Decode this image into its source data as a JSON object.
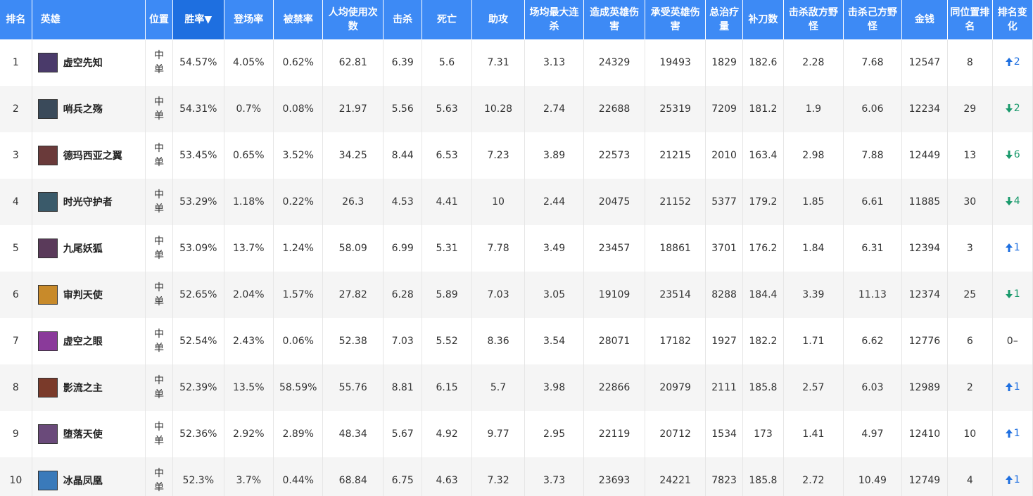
{
  "headers": {
    "rank": "排名",
    "hero": "英雄",
    "position": "位置",
    "win_rate": "胜率▼",
    "pick_rate": "登场率",
    "ban_rate": "被禁率",
    "avg_games": "人均使用次数",
    "kills": "击杀",
    "deaths": "死亡",
    "assists": "助攻",
    "max_streak": "场均最大连杀",
    "damage_dealt": "造成英雄伤害",
    "damage_taken": "承受英雄伤害",
    "healing": "总治疗量",
    "cs": "补刀数",
    "enemy_jungle": "击杀敌方野怪",
    "own_jungle": "击杀己方野怪",
    "gold": "金钱",
    "position_rank": "同位置排名",
    "rank_change": "排名变化"
  },
  "accent_colors": {
    "header": "#3d8af5",
    "header_sorted": "#1e6fe0",
    "up": "#1e6fe0",
    "down": "#1a9a6c"
  },
  "rows": [
    {
      "rank": "1",
      "hero": "虚空先知",
      "avatar_color": "#4a3a6a",
      "pos1": "中",
      "pos2": "单",
      "win_rate": "54.57%",
      "pick_rate": "4.05%",
      "ban_rate": "0.62%",
      "avg_games": "62.81",
      "kills": "6.39",
      "deaths": "5.6",
      "assists": "7.31",
      "max_streak": "3.13",
      "damage_dealt": "24329",
      "damage_taken": "19493",
      "healing": "1829",
      "cs": "182.6",
      "enemy_jungle": "2.28",
      "own_jungle": "7.68",
      "gold": "12547",
      "position_rank": "8",
      "change_dir": "up",
      "change_val": "2"
    },
    {
      "rank": "2",
      "hero": "哨兵之殇",
      "avatar_color": "#3a4a5a",
      "pos1": "中",
      "pos2": "单",
      "win_rate": "54.31%",
      "pick_rate": "0.7%",
      "ban_rate": "0.08%",
      "avg_games": "21.97",
      "kills": "5.56",
      "deaths": "5.63",
      "assists": "10.28",
      "max_streak": "2.74",
      "damage_dealt": "22688",
      "damage_taken": "25319",
      "healing": "7209",
      "cs": "181.2",
      "enemy_jungle": "1.9",
      "own_jungle": "6.06",
      "gold": "12234",
      "position_rank": "29",
      "change_dir": "down",
      "change_val": "2"
    },
    {
      "rank": "3",
      "hero": "德玛西亚之翼",
      "avatar_color": "#6a3a3a",
      "pos1": "中",
      "pos2": "单",
      "win_rate": "53.45%",
      "pick_rate": "0.65%",
      "ban_rate": "3.52%",
      "avg_games": "34.25",
      "kills": "8.44",
      "deaths": "6.53",
      "assists": "7.23",
      "max_streak": "3.89",
      "damage_dealt": "22573",
      "damage_taken": "21215",
      "healing": "2010",
      "cs": "163.4",
      "enemy_jungle": "2.98",
      "own_jungle": "7.88",
      "gold": "12449",
      "position_rank": "13",
      "change_dir": "down",
      "change_val": "6"
    },
    {
      "rank": "4",
      "hero": "时光守护者",
      "avatar_color": "#3a5a6a",
      "pos1": "中",
      "pos2": "单",
      "win_rate": "53.29%",
      "pick_rate": "1.18%",
      "ban_rate": "0.22%",
      "avg_games": "26.3",
      "kills": "4.53",
      "deaths": "4.41",
      "assists": "10",
      "max_streak": "2.44",
      "damage_dealt": "20475",
      "damage_taken": "21152",
      "healing": "5377",
      "cs": "179.2",
      "enemy_jungle": "1.85",
      "own_jungle": "6.61",
      "gold": "11885",
      "position_rank": "30",
      "change_dir": "down",
      "change_val": "4"
    },
    {
      "rank": "5",
      "hero": "九尾妖狐",
      "avatar_color": "#5a3a5a",
      "pos1": "中",
      "pos2": "单",
      "win_rate": "53.09%",
      "pick_rate": "13.7%",
      "ban_rate": "1.24%",
      "avg_games": "58.09",
      "kills": "6.99",
      "deaths": "5.31",
      "assists": "7.78",
      "max_streak": "3.49",
      "damage_dealt": "23457",
      "damage_taken": "18861",
      "healing": "3701",
      "cs": "176.2",
      "enemy_jungle": "1.84",
      "own_jungle": "6.31",
      "gold": "12394",
      "position_rank": "3",
      "change_dir": "up",
      "change_val": "1"
    },
    {
      "rank": "6",
      "hero": "审判天使",
      "avatar_color": "#c88a2a",
      "pos1": "中",
      "pos2": "单",
      "win_rate": "52.65%",
      "pick_rate": "2.04%",
      "ban_rate": "1.57%",
      "avg_games": "27.82",
      "kills": "6.28",
      "deaths": "5.89",
      "assists": "7.03",
      "max_streak": "3.05",
      "damage_dealt": "19109",
      "damage_taken": "23514",
      "healing": "8288",
      "cs": "184.4",
      "enemy_jungle": "3.39",
      "own_jungle": "11.13",
      "gold": "12374",
      "position_rank": "25",
      "change_dir": "down",
      "change_val": "1"
    },
    {
      "rank": "7",
      "hero": "虚空之眼",
      "avatar_color": "#8a3a9a",
      "pos1": "中",
      "pos2": "单",
      "win_rate": "52.54%",
      "pick_rate": "2.43%",
      "ban_rate": "0.06%",
      "avg_games": "52.38",
      "kills": "7.03",
      "deaths": "5.52",
      "assists": "8.36",
      "max_streak": "3.54",
      "damage_dealt": "28071",
      "damage_taken": "17182",
      "healing": "1927",
      "cs": "182.2",
      "enemy_jungle": "1.71",
      "own_jungle": "6.62",
      "gold": "12776",
      "position_rank": "6",
      "change_dir": "same",
      "change_val": "0–"
    },
    {
      "rank": "8",
      "hero": "影流之主",
      "avatar_color": "#7a3a2a",
      "pos1": "中",
      "pos2": "单",
      "win_rate": "52.39%",
      "pick_rate": "13.5%",
      "ban_rate": "58.59%",
      "avg_games": "55.76",
      "kills": "8.81",
      "deaths": "6.15",
      "assists": "5.7",
      "max_streak": "3.98",
      "damage_dealt": "22866",
      "damage_taken": "20979",
      "healing": "2111",
      "cs": "185.8",
      "enemy_jungle": "2.57",
      "own_jungle": "6.03",
      "gold": "12989",
      "position_rank": "2",
      "change_dir": "up",
      "change_val": "1"
    },
    {
      "rank": "9",
      "hero": "堕落天使",
      "avatar_color": "#6a4a7a",
      "pos1": "中",
      "pos2": "单",
      "win_rate": "52.36%",
      "pick_rate": "2.92%",
      "ban_rate": "2.89%",
      "avg_games": "48.34",
      "kills": "5.67",
      "deaths": "4.92",
      "assists": "9.77",
      "max_streak": "2.95",
      "damage_dealt": "22119",
      "damage_taken": "20712",
      "healing": "1534",
      "cs": "173",
      "enemy_jungle": "1.41",
      "own_jungle": "4.97",
      "gold": "12410",
      "position_rank": "10",
      "change_dir": "up",
      "change_val": "1"
    },
    {
      "rank": "10",
      "hero": "冰晶凤凰",
      "avatar_color": "#3a7aba",
      "pos1": "中",
      "pos2": "单",
      "win_rate": "52.3%",
      "pick_rate": "3.7%",
      "ban_rate": "0.44%",
      "avg_games": "68.84",
      "kills": "6.75",
      "deaths": "4.63",
      "assists": "7.32",
      "max_streak": "3.73",
      "damage_dealt": "23693",
      "damage_taken": "24221",
      "healing": "7823",
      "cs": "185.8",
      "enemy_jungle": "2.72",
      "own_jungle": "10.49",
      "gold": "12749",
      "position_rank": "4",
      "change_dir": "up",
      "change_val": "1"
    }
  ]
}
